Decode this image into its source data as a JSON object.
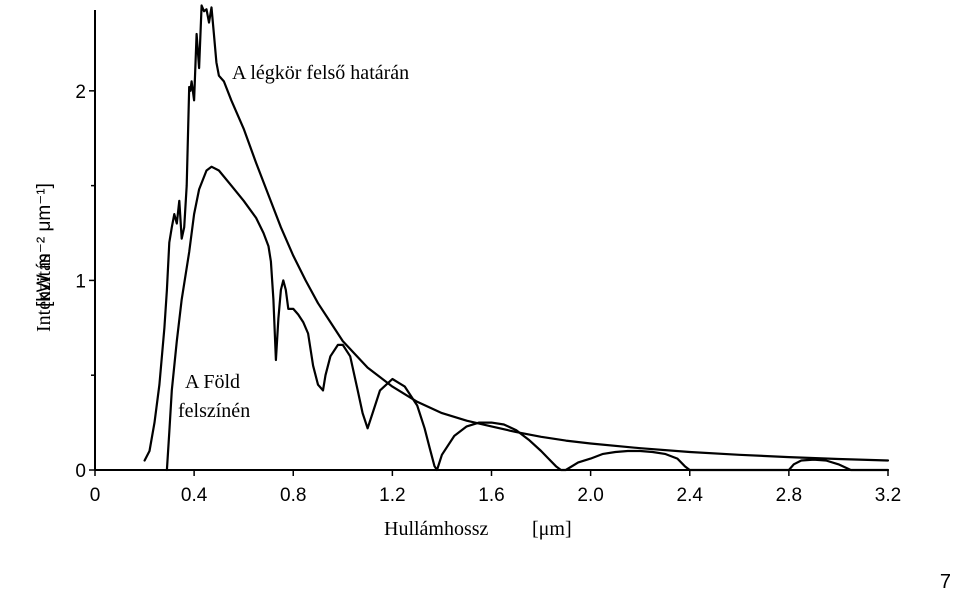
{
  "chart_data": {
    "type": "line",
    "xlabel": "Hullámhossz",
    "xunit": "[μm]",
    "ylabel": "Intenzitás",
    "yunit": "[kW m⁻² μm⁻¹]",
    "xlim": [
      0,
      3.2
    ],
    "ylim": [
      0,
      2.4
    ],
    "xticks": [
      "0",
      "0.4",
      "0.8",
      "1.2",
      "1.6",
      "2.0",
      "2.4",
      "2.8",
      "3.2"
    ],
    "yticks": [
      "0",
      "1",
      "2"
    ],
    "grid": false,
    "series": [
      {
        "name": "A légkör felső határán",
        "x": [
          0.2,
          0.22,
          0.24,
          0.26,
          0.27,
          0.28,
          0.29,
          0.3,
          0.31,
          0.32,
          0.33,
          0.34,
          0.35,
          0.36,
          0.37,
          0.38,
          0.385,
          0.39,
          0.4,
          0.41,
          0.42,
          0.43,
          0.44,
          0.45,
          0.46,
          0.47,
          0.48,
          0.49,
          0.5,
          0.52,
          0.55,
          0.6,
          0.65,
          0.7,
          0.75,
          0.8,
          0.85,
          0.9,
          0.95,
          1.0,
          1.1,
          1.2,
          1.3,
          1.4,
          1.5,
          1.6,
          1.7,
          1.8,
          1.9,
          2.0,
          2.2,
          2.4,
          2.6,
          2.8,
          3.0,
          3.2
        ],
        "values": [
          0.05,
          0.1,
          0.25,
          0.45,
          0.6,
          0.75,
          0.95,
          1.2,
          1.28,
          1.35,
          1.3,
          1.42,
          1.22,
          1.28,
          1.5,
          2.02,
          2.0,
          2.05,
          1.95,
          2.3,
          2.12,
          2.45,
          2.42,
          2.43,
          2.36,
          2.44,
          2.3,
          2.15,
          2.08,
          2.05,
          1.95,
          1.8,
          1.62,
          1.45,
          1.28,
          1.13,
          1.0,
          0.88,
          0.78,
          0.68,
          0.54,
          0.44,
          0.36,
          0.3,
          0.26,
          0.23,
          0.2,
          0.175,
          0.155,
          0.14,
          0.115,
          0.095,
          0.08,
          0.068,
          0.058,
          0.05
        ]
      },
      {
        "name": "A Föld felszínén",
        "x": [
          0.29,
          0.3,
          0.31,
          0.33,
          0.35,
          0.38,
          0.4,
          0.42,
          0.45,
          0.47,
          0.5,
          0.55,
          0.6,
          0.65,
          0.68,
          0.7,
          0.71,
          0.72,
          0.73,
          0.74,
          0.75,
          0.76,
          0.77,
          0.78,
          0.8,
          0.82,
          0.84,
          0.86,
          0.88,
          0.9,
          0.92,
          0.93,
          0.95,
          0.98,
          1.0,
          1.03,
          1.06,
          1.08,
          1.1,
          1.12,
          1.15,
          1.2,
          1.25,
          1.3,
          1.33,
          1.35,
          1.37,
          1.38,
          1.4,
          1.45,
          1.5,
          1.55,
          1.6,
          1.65,
          1.7,
          1.75,
          1.8,
          1.83,
          1.86,
          1.88,
          1.9,
          1.95,
          2.0,
          2.05,
          2.1,
          2.15,
          2.2,
          2.25,
          2.3,
          2.35,
          2.38,
          2.4,
          2.5,
          2.6,
          2.7,
          2.8,
          2.82,
          2.85,
          2.9,
          2.95,
          3.0,
          3.05,
          3.1,
          3.2
        ],
        "values": [
          0.0,
          0.2,
          0.42,
          0.68,
          0.9,
          1.15,
          1.35,
          1.48,
          1.58,
          1.6,
          1.58,
          1.5,
          1.42,
          1.33,
          1.25,
          1.18,
          1.1,
          0.9,
          0.58,
          0.8,
          0.95,
          1.0,
          0.95,
          0.85,
          0.85,
          0.82,
          0.78,
          0.72,
          0.55,
          0.45,
          0.42,
          0.5,
          0.6,
          0.66,
          0.66,
          0.6,
          0.42,
          0.3,
          0.22,
          0.3,
          0.42,
          0.48,
          0.44,
          0.34,
          0.22,
          0.12,
          0.02,
          0.0,
          0.08,
          0.18,
          0.23,
          0.25,
          0.25,
          0.24,
          0.21,
          0.16,
          0.1,
          0.06,
          0.02,
          0.0,
          0.0,
          0.04,
          0.06,
          0.085,
          0.095,
          0.1,
          0.1,
          0.095,
          0.085,
          0.06,
          0.02,
          0.0,
          0.0,
          0.0,
          0.0,
          0.0,
          0.03,
          0.05,
          0.055,
          0.05,
          0.03,
          0.0,
          0.0,
          0.0
        ]
      }
    ],
    "annotations": [
      {
        "text": "A légkör felső határán",
        "series": 0
      },
      {
        "text": "A Föld",
        "series": 1
      },
      {
        "text": "felszínén",
        "series": 1
      }
    ]
  },
  "page": {
    "number": "7"
  }
}
